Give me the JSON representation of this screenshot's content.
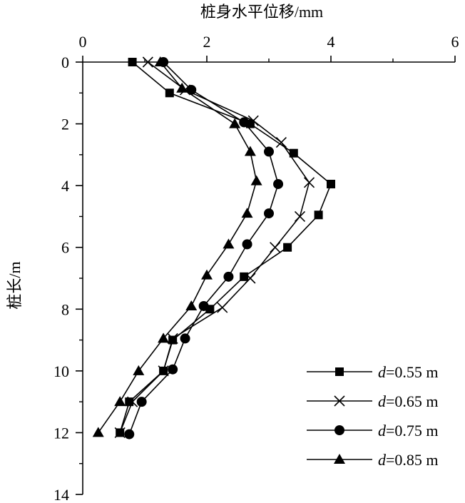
{
  "chart_data": {
    "type": "line",
    "title": "",
    "xlabel": "桩身水平位移/mm",
    "ylabel": "桩长/m",
    "x_axis_position": "top",
    "y_axis_inverted": true,
    "xlim": [
      0,
      6
    ],
    "ylim": [
      0,
      14
    ],
    "xticks": [
      "0",
      "2",
      "4",
      "6"
    ],
    "yticks": [
      "0",
      "2",
      "4",
      "6",
      "8",
      "10",
      "12",
      "14"
    ],
    "grid": false,
    "legend_position": "bottom-right",
    "series": [
      {
        "name_prefix": "d",
        "name_suffix": "=0.55 m",
        "marker": "square",
        "points": [
          {
            "x": 0.8,
            "y": 0
          },
          {
            "x": 1.4,
            "y": 1
          },
          {
            "x": 2.7,
            "y": 2
          },
          {
            "x": 3.4,
            "y": 2.95
          },
          {
            "x": 4.0,
            "y": 3.95
          },
          {
            "x": 3.8,
            "y": 4.95
          },
          {
            "x": 3.3,
            "y": 6
          },
          {
            "x": 2.6,
            "y": 6.95
          },
          {
            "x": 2.05,
            "y": 8
          },
          {
            "x": 1.45,
            "y": 9
          },
          {
            "x": 1.3,
            "y": 10
          },
          {
            "x": 0.75,
            "y": 11
          },
          {
            "x": 0.6,
            "y": 12
          }
        ]
      },
      {
        "name_prefix": "d",
        "name_suffix": "=0.65 m",
        "marker": "cross",
        "points": [
          {
            "x": 1.05,
            "y": 0
          },
          {
            "x": 1.65,
            "y": 0.9
          },
          {
            "x": 2.75,
            "y": 1.9
          },
          {
            "x": 3.2,
            "y": 2.6
          },
          {
            "x": 3.65,
            "y": 3.9
          },
          {
            "x": 3.5,
            "y": 5
          },
          {
            "x": 3.1,
            "y": 6
          },
          {
            "x": 2.7,
            "y": 7
          },
          {
            "x": 2.25,
            "y": 7.95
          },
          {
            "x": 1.45,
            "y": 8.95
          },
          {
            "x": 1.3,
            "y": 10
          },
          {
            "x": 0.8,
            "y": 11
          },
          {
            "x": 0.6,
            "y": 12
          }
        ]
      },
      {
        "name_prefix": "d",
        "name_suffix": "=0.75 m",
        "marker": "circle",
        "points": [
          {
            "x": 1.3,
            "y": 0
          },
          {
            "x": 1.75,
            "y": 0.9
          },
          {
            "x": 2.6,
            "y": 1.95
          },
          {
            "x": 3.0,
            "y": 2.9
          },
          {
            "x": 3.15,
            "y": 3.95
          },
          {
            "x": 3.0,
            "y": 4.9
          },
          {
            "x": 2.65,
            "y": 5.9
          },
          {
            "x": 2.35,
            "y": 6.95
          },
          {
            "x": 1.95,
            "y": 7.9
          },
          {
            "x": 1.65,
            "y": 8.95
          },
          {
            "x": 1.45,
            "y": 9.95
          },
          {
            "x": 0.95,
            "y": 11
          },
          {
            "x": 0.75,
            "y": 12.05
          }
        ]
      },
      {
        "name_prefix": "d",
        "name_suffix": "=0.85 m",
        "marker": "triangle",
        "points": [
          {
            "x": 1.25,
            "y": 0
          },
          {
            "x": 1.6,
            "y": 0.85
          },
          {
            "x": 2.45,
            "y": 2.0
          },
          {
            "x": 2.7,
            "y": 2.9
          },
          {
            "x": 2.8,
            "y": 3.85
          },
          {
            "x": 2.65,
            "y": 4.9
          },
          {
            "x": 2.35,
            "y": 5.9
          },
          {
            "x": 2.0,
            "y": 6.9
          },
          {
            "x": 1.75,
            "y": 7.9
          },
          {
            "x": 1.3,
            "y": 8.95
          },
          {
            "x": 0.9,
            "y": 10
          },
          {
            "x": 0.6,
            "y": 11
          },
          {
            "x": 0.25,
            "y": 12
          }
        ]
      }
    ]
  }
}
